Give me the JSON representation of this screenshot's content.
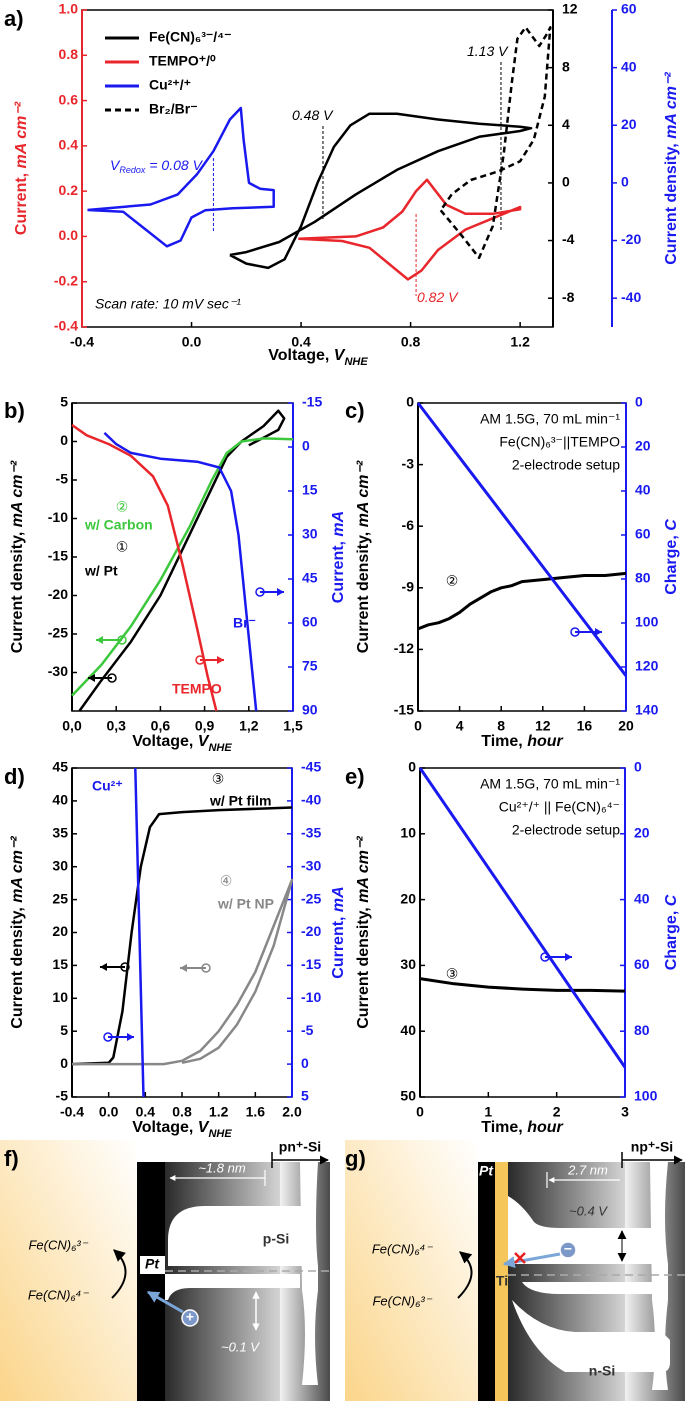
{
  "chart_data": [
    {
      "type": "line",
      "label": "a)",
      "legend": "upper left",
      "xlabel": [
        "Voltage, ",
        "V",
        "NHE"
      ],
      "ylabel": [
        "Current, ",
        "mA cm⁻²"
      ],
      "y3label": [
        "Current density, ",
        "mA cm⁻²"
      ],
      "xlim": [
        -0.4,
        1.32
      ],
      "xticks": [
        -0.4,
        {
          "value": 0,
          "label": "0.0"
        },
        0.4,
        0.8,
        1.2
      ],
      "ylim": [
        -0.4,
        1.0
      ],
      "yticks": [
        -0.4,
        -0.2,
        {
          "value": 0,
          "label": "0.0"
        },
        0.2,
        0.4,
        0.6,
        0.8,
        {
          "value": 1,
          "label": "1.0"
        }
      ],
      "ycolor": "#e8262b",
      "y2lim": [
        -10,
        12
      ],
      "y2ticks": [
        -8,
        -4,
        0,
        4,
        8,
        12
      ],
      "y2color": "#000000",
      "y3lim": [
        -50,
        60
      ],
      "y3ticks": [
        -40,
        -20,
        0,
        20,
        40,
        60
      ],
      "y3color": "#1919f0",
      "series": [
        {
          "name": "Fe(CN)₆³⁻/⁴⁻",
          "color": "#000000",
          "axis": "y2",
          "x": [
            0.14,
            0.2,
            0.28,
            0.34,
            0.4,
            0.46,
            0.52,
            0.58,
            0.65,
            0.75,
            0.9,
            1.05,
            1.2,
            1.24,
            1.2,
            1.05,
            0.9,
            0.75,
            0.6,
            0.45,
            0.32,
            0.2,
            0.14
          ],
          "values": [
            -5.0,
            -5.6,
            -5.9,
            -5.3,
            -3.0,
            0.0,
            2.5,
            4.0,
            4.8,
            4.8,
            4.4,
            4.1,
            3.9,
            3.8,
            3.6,
            3.2,
            2.2,
            0.9,
            -0.8,
            -2.7,
            -4.1,
            -4.8,
            -5.0
          ]
        },
        {
          "name": "TEMPO⁺/⁰",
          "color": "#e8262b",
          "axis": "y",
          "x": [
            0.39,
            0.55,
            0.65,
            0.72,
            0.79,
            0.84,
            0.9,
            1.0,
            1.1,
            1.2,
            1.2,
            1.1,
            1.0,
            0.93,
            0.86,
            0.82,
            0.77,
            0.7,
            0.6,
            0.39
          ],
          "values": [
            -0.01,
            -0.02,
            -0.05,
            -0.12,
            -0.19,
            -0.15,
            -0.06,
            0.03,
            0.08,
            0.13,
            0.12,
            0.1,
            0.1,
            0.14,
            0.25,
            0.2,
            0.11,
            0.04,
            0.0,
            -0.01
          ]
        },
        {
          "name": "Cu²⁺/⁺",
          "color": "#1919f0",
          "axis": "y3",
          "x": [
            -0.38,
            -0.25,
            -0.17,
            -0.09,
            -0.04,
            0.0,
            0.05,
            0.15,
            0.3,
            0.3,
            0.25,
            0.21,
            0.19,
            0.18,
            0.14,
            0.08,
            0.02,
            -0.05,
            -0.15,
            -0.38
          ],
          "values": [
            -9.4,
            -10,
            -16,
            -22,
            -20,
            -12,
            -9.5,
            -8.8,
            -8.3,
            -2.5,
            -2,
            0,
            15,
            26,
            22,
            11,
            3,
            -4,
            -7.5,
            -9.4
          ]
        },
        {
          "name": "Br₂/Br⁻",
          "color": "#000000",
          "axis": "y2",
          "dash": true,
          "x": [
            0.91,
            0.98,
            1.05,
            1.1,
            1.14,
            1.17,
            1.19,
            1.22,
            1.27,
            1.3,
            1.31,
            1.29,
            1.25,
            1.2,
            1.12,
            1.02,
            0.95,
            0.91
          ],
          "values": [
            -1.9,
            -3.5,
            -5.2,
            -3,
            2,
            7,
            10,
            10.8,
            9.5,
            10.4,
            10.8,
            6,
            3,
            1.5,
            0.8,
            0.2,
            -0.8,
            -1.9
          ]
        }
      ],
      "markers": [
        {
          "value": 0.48,
          "label": "0.48 V",
          "color": "#000000"
        },
        {
          "value": 1.13,
          "label": "1.13 V",
          "color": "#000000"
        },
        {
          "value": 0.82,
          "label": "0.82 V",
          "color": "#e8262b"
        },
        {
          "value": 0.08,
          "label": "= 0.08 V",
          "prefix": "V",
          "prefix_sub": "Redox",
          "color": "#1919f0"
        }
      ],
      "annotations": [
        "Scan rate: 10 mV sec⁻¹"
      ]
    },
    {
      "type": "line",
      "label": "b)",
      "xlabel": [
        "Voltage, ",
        "V",
        "NHE"
      ],
      "ylabel": [
        "Current density, ",
        "mA cm⁻²"
      ],
      "y2label": [
        "Current, ",
        "mA"
      ],
      "xlim": [
        0,
        1.5
      ],
      "xticks": [
        {
          "value": 0,
          "label": "0,0"
        },
        {
          "value": 0.3,
          "label": "0,3"
        },
        {
          "value": 0.6,
          "label": "0,6"
        },
        {
          "value": 0.9,
          "label": "0,9"
        },
        {
          "value": 1.2,
          "label": "1,2"
        },
        {
          "value": 1.5,
          "label": "1,5"
        }
      ],
      "ylim": [
        -35,
        5
      ],
      "yticks": [
        -30,
        -25,
        -20,
        -15,
        -10,
        -5,
        0,
        5
      ],
      "ycolor": "#000000",
      "y2lim": [
        90,
        -15
      ],
      "y2ticks": [
        -15,
        0,
        15,
        30,
        45,
        60,
        75,
        90
      ],
      "y2color": "#1919f0",
      "series": [
        {
          "name": "w/ Pt",
          "color": "#000000",
          "axis": "y",
          "x": [
            0.05,
            0.2,
            0.4,
            0.6,
            0.8,
            0.95,
            1.05,
            1.15,
            1.3,
            1.4,
            1.44,
            1.4,
            1.3,
            1.2
          ],
          "values": [
            -35,
            -31,
            -26,
            -20,
            -12,
            -6,
            -2,
            0,
            2,
            4,
            3,
            1.5,
            0.5,
            -0.5
          ]
        },
        {
          "name": "w/ Carbon",
          "color": "#3cc83c",
          "axis": "y",
          "x": [
            0,
            0.2,
            0.4,
            0.6,
            0.8,
            0.95,
            1.05,
            1.15,
            1.3,
            1.5
          ],
          "values": [
            -33,
            -29,
            -24,
            -18,
            -11,
            -5,
            -1.5,
            0,
            0.4,
            0.3
          ]
        },
        {
          "name": "TEMPO",
          "color": "#e8262b",
          "axis": "y2",
          "x": [
            0,
            0.1,
            0.25,
            0.4,
            0.55,
            0.65,
            0.75,
            0.85,
            0.92,
            0.98
          ],
          "values": [
            -7.5,
            -4,
            -1,
            3,
            10,
            20,
            40,
            62,
            78,
            90
          ]
        },
        {
          "name": "Br⁻",
          "color": "#1919f0",
          "axis": "y2",
          "x": [
            0.22,
            0.3,
            0.4,
            0.6,
            0.85,
            1.0,
            1.08,
            1.13,
            1.17,
            1.21,
            1.25
          ],
          "values": [
            -4.8,
            -1,
            2,
            4,
            5,
            7,
            15,
            30,
            50,
            70,
            90
          ]
        }
      ],
      "annotations": [
        "②",
        "①"
      ]
    },
    {
      "type": "line",
      "label": "c)",
      "xlabel": [
        "Time, ",
        "hour"
      ],
      "ylabel": [
        "Current density, ",
        "mA cm⁻²"
      ],
      "y2label": [
        "Charge, ",
        "C"
      ],
      "xlim": [
        0,
        20
      ],
      "xticks": [
        0,
        4,
        8,
        12,
        16,
        20
      ],
      "ylim": [
        -15,
        0
      ],
      "yticks": [
        -15,
        -12,
        -9,
        -6,
        -3,
        0
      ],
      "ycolor": "#000000",
      "y2lim": [
        140,
        0
      ],
      "y2ticks": [
        0,
        20,
        40,
        60,
        80,
        100,
        120,
        140
      ],
      "y2color": "#1919f0",
      "series": [
        {
          "color": "#000000",
          "axis": "y",
          "x": [
            0,
            1,
            2,
            3,
            4,
            5,
            6,
            7,
            8,
            9,
            10,
            12,
            14,
            16,
            18,
            20
          ],
          "values": [
            -11,
            -10.8,
            -10.7,
            -10.5,
            -10.2,
            -9.8,
            -9.5,
            -9.2,
            -9,
            -8.9,
            -8.7,
            -8.6,
            -8.5,
            -8.4,
            -8.4,
            -8.3
          ]
        },
        {
          "color": "#1919f0",
          "axis": "y2",
          "x": [
            0,
            5,
            10,
            15,
            20
          ],
          "values": [
            0,
            31,
            62,
            93,
            124
          ]
        }
      ],
      "annotations": [
        "AM 1.5G, 70 mL min⁻¹",
        "Fe(CN)₆³⁻||TEMPO",
        "2-electrode setup",
        "②"
      ]
    },
    {
      "type": "line",
      "label": "d)",
      "xlabel": [
        "Voltage, ",
        "V",
        "NHE"
      ],
      "ylabel": [
        "Current density, ",
        "mA cm⁻²"
      ],
      "y2label": [
        "Current, ",
        "mA"
      ],
      "xlim": [
        -0.4,
        2.0
      ],
      "xticks": [
        -0.4,
        {
          "value": 0,
          "label": "0.0"
        },
        0.4,
        0.8,
        1.2,
        1.6,
        {
          "value": 2,
          "label": "2.0"
        }
      ],
      "ylim": [
        -5,
        45
      ],
      "yticks": [
        -5,
        0,
        5,
        10,
        15,
        20,
        25,
        30,
        35,
        40,
        45
      ],
      "ycolor": "#000000",
      "y2lim": [
        5,
        -45
      ],
      "y2ticks": [
        -45,
        -40,
        -35,
        -30,
        -25,
        -20,
        -15,
        -10,
        -5,
        0,
        5
      ],
      "y2color": "#1919f0",
      "series": [
        {
          "name": "w/ Pt film",
          "color": "#000000",
          "axis": "y",
          "x": [
            -0.4,
            0,
            0.05,
            0.15,
            0.25,
            0.35,
            0.45,
            0.55,
            0.8,
            1.2,
            2.0
          ],
          "values": [
            0,
            0.2,
            1,
            8,
            20,
            30,
            36,
            38,
            38.3,
            38.6,
            39
          ]
        },
        {
          "name": "w/ Pt NP",
          "color": "#888888",
          "axis": "y",
          "x": [
            -0.4,
            0.6,
            0.8,
            1.0,
            1.2,
            1.4,
            1.6,
            1.8,
            2.0,
            1.8,
            1.6,
            1.4,
            1.2,
            1.0,
            0.8
          ],
          "values": [
            0,
            0,
            0.5,
            2,
            5,
            9,
            14,
            21,
            28,
            18,
            11,
            6,
            2.5,
            0.8,
            0.2
          ]
        },
        {
          "name": "Cu²⁺",
          "color": "#1919f0",
          "axis": "y2",
          "x": [
            0.29,
            0.38
          ],
          "values": [
            -45,
            5
          ]
        }
      ],
      "annotations": [
        "③",
        "④"
      ]
    },
    {
      "type": "line",
      "label": "e)",
      "xlabel": [
        "Time, ",
        "hour"
      ],
      "ylabel": [
        "Current density, ",
        "mA cm⁻²"
      ],
      "y2label": [
        "Charge, ",
        "C"
      ],
      "xlim": [
        0,
        3
      ],
      "xticks": [
        0,
        1,
        2,
        3
      ],
      "ylim": [
        50,
        0
      ],
      "yticks": [
        0,
        10,
        20,
        30,
        40,
        50
      ],
      "ycolor": "#000000",
      "y2lim": [
        100,
        0
      ],
      "y2ticks": [
        0,
        20,
        40,
        60,
        80,
        100
      ],
      "y2color": "#1919f0",
      "series": [
        {
          "color": "#000000",
          "axis": "y",
          "x": [
            0,
            0.5,
            1,
            1.5,
            2,
            2.5,
            3
          ],
          "values": [
            32,
            32.8,
            33.3,
            33.6,
            33.8,
            33.8,
            33.9
          ]
        },
        {
          "color": "#1919f0",
          "axis": "y2",
          "x": [
            0,
            3
          ],
          "values": [
            0,
            91
          ]
        }
      ],
      "annotations": [
        "AM 1.5G, 70 mL min⁻¹",
        "Cu²⁺/⁺ || Fe(CN)₆⁴⁻",
        "2-electrode setup",
        "③"
      ]
    }
  ],
  "diagrams": [
    {
      "label": "f)",
      "top_label": "pn⁺-Si",
      "width": "~1.8 nm",
      "region": "p-Si",
      "species": [
        "Fe(CN)₆³⁻",
        "Fe(CN)₆⁴⁻"
      ],
      "metal": "Pt",
      "carrier": "+",
      "barrier": "~0.1 V"
    },
    {
      "label": "g)",
      "top_label": "np⁺-Si",
      "width": "2.7 nm",
      "region": "n-Si",
      "species": [
        "Fe(CN)₆⁴⁻",
        "Fe(CN)₆³⁻"
      ],
      "metal": "Pt",
      "interlayer": "Ti",
      "carrier": "−",
      "barrier": "~0.4 V"
    }
  ]
}
